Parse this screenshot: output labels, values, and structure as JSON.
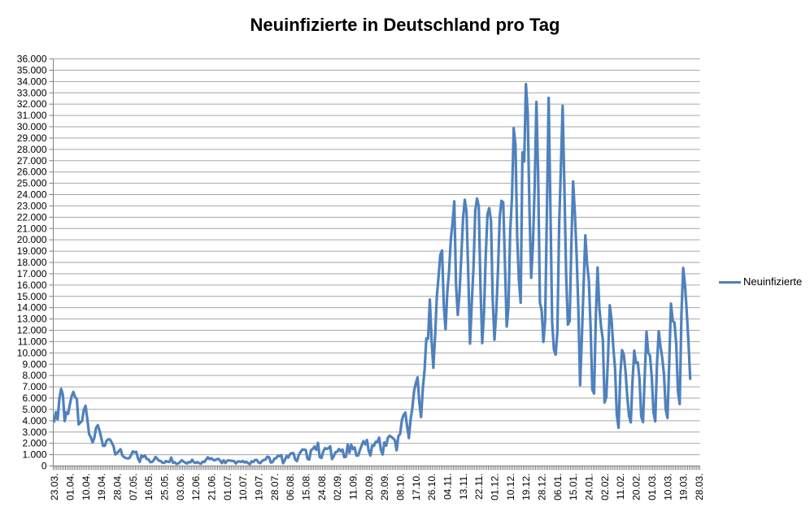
{
  "title": "Neuinfizierte in Deutschland pro Tag",
  "legend": {
    "label": "Neuinfizierte",
    "position": "right"
  },
  "colors": {
    "line": "#4F81BD",
    "gridline": "#A6A6A6",
    "axis": "#808080",
    "text": "#000000",
    "background": "#FFFFFF"
  },
  "chart_data": {
    "type": "line",
    "title": "Neuinfizierte in Deutschland pro Tag",
    "xlabel": "",
    "ylabel": "",
    "grid": true,
    "legend_position": "right",
    "ylim": [
      0,
      36000
    ],
    "y_tick_interval": 1000,
    "y_tick_format": "thousands-dot",
    "x_label_interval": 9,
    "x_minor_ticks": "daily",
    "x_tick_labels": [
      "23.03.",
      "01.04.",
      "10.04.",
      "19.04.",
      "28.04.",
      "07.05.",
      "16.05.",
      "25.05.",
      "03.06.",
      "12.06.",
      "21.06.",
      "01.07.",
      "10.07.",
      "19.07.",
      "28.07.",
      "06.08.",
      "15.08.",
      "24.08.",
      "02.09.",
      "11.09.",
      "20.09.",
      "29.09.",
      "08.10.",
      "17.10.",
      "26.10.",
      "04.11.",
      "13.11.",
      "22.11.",
      "01.12.",
      "10.12.",
      "19.12.",
      "28.12.",
      "06.01.",
      "15.01.",
      "24.01.",
      "02.02.",
      "11.02.",
      "20.02.",
      "01.03.",
      "10.03.",
      "19.03.",
      "28.03."
    ],
    "series": [
      {
        "name": "Neuinfizierte",
        "start_label": "23.03.",
        "values": [
          3930,
          4764,
          4118,
          5940,
          6824,
          6294,
          3965,
          4751,
          4615,
          5453,
          6156,
          6549,
          6082,
          5936,
          3677,
          3834,
          4003,
          4974,
          5323,
          4133,
          2821,
          2537,
          2082,
          2486,
          3380,
          3609,
          3118,
          2458,
          1775,
          1785,
          2237,
          2352,
          2337,
          2055,
          1737,
          1018,
          1144,
          1304,
          1478,
          945,
          793,
          697,
          679,
          685,
          947,
          1284,
          1209,
          1251,
          667,
          357,
          933,
          798,
          913,
          620,
          583,
          342,
          358,
          513,
          797,
          639,
          460,
          431,
          289,
          272,
          432,
          362,
          353,
          741,
          286,
          333,
          181,
          213,
          342,
          507,
          394,
          301,
          214,
          350,
          318,
          555,
          318,
          258,
          348,
          247,
          192,
          378,
          345,
          580,
          770,
          601,
          687,
          537,
          503,
          587,
          630,
          477,
          256,
          498,
          262,
          466,
          503,
          466,
          446,
          422,
          219,
          390,
          397,
          356,
          442,
          305,
          378,
          248,
          159,
          412,
          351,
          534,
          529,
          305,
          249,
          454,
          522,
          569,
          815,
          781,
          305,
          340,
          633,
          684,
          902,
          870,
          955,
          240,
          509,
          879,
          741,
          1045,
          1147,
          1122,
          555,
          436,
          966,
          1226,
          1445,
          1449,
          1415,
          625,
          561,
          1390,
          1510,
          1707,
          1427,
          2034,
          782,
          711,
          1278,
          1576,
          1507,
          1571,
          1737,
          610,
          852,
          1218,
          1256,
          1499,
          1311,
          1453,
          782,
          814,
          1898,
          1176,
          1892,
          1484,
          1630,
          920,
          927,
          1407,
          1821,
          2194,
          1916,
          2297,
          1345,
          922,
          1821,
          1769,
          2143,
          2126,
          2507,
          1411,
          1011,
          2089,
          1798,
          2503,
          2673,
          2563,
          2449,
          2279,
          1382,
          2639,
          2828,
          4058,
          4516,
          4721,
          3483,
          2467,
          4122,
          5132,
          6638,
          7334,
          7830,
          5587,
          4325,
          6868,
          8523,
          11287,
          11242,
          14714,
          11176,
          8685,
          11409,
          14964,
          16774,
          18681,
          19059,
          14177,
          12097,
          15352,
          17214,
          19990,
          21506,
          23399,
          16017,
          13363,
          15332,
          18487,
          21866,
          23542,
          22461,
          16947,
          10824,
          14419,
          17561,
          22609,
          23648,
          22964,
          15741,
          10864,
          13554,
          18633,
          22268,
          22806,
          21695,
          14611,
          11169,
          13604,
          17270,
          22046,
          23449,
          23318,
          17767,
          12332,
          14054,
          20815,
          23679,
          29875,
          28438,
          20200,
          16362,
          14432,
          27728,
          26923,
          33777,
          31300,
          22771,
          16643,
          19528,
          24740,
          32195,
          25533,
          14455,
          13755,
          10976,
          12892,
          22459,
          32552,
          22924,
          12690,
          10315,
          9847,
          11897,
          21237,
          26391,
          31849,
          24694,
          16946,
          12497,
          12802,
          19600,
          25164,
          22368,
          18678,
          13882,
          7141,
          11369,
          15974,
          20398,
          17862,
          16417,
          12257,
          6729,
          6412,
          13202,
          17553,
          14022,
          12321,
          11192,
          5608,
          6114,
          9705,
          14211,
          12908,
          10485,
          8616,
          4535,
          3379,
          8072,
          10237,
          9860,
          8354,
          6114,
          4426,
          3856,
          7556,
          10207,
          9113,
          9164,
          7676,
          4369,
          3883,
          8007,
          11869,
          9997,
          9762,
          7890,
          4732,
          3943,
          9019,
          11912,
          10580,
          9557,
          8103,
          5011,
          4252,
          9146,
          14356,
          12834,
          12674,
          10790,
          6604,
          5480,
          13435,
          17504,
          16033,
          13733,
          10982,
          7709
        ]
      }
    ]
  }
}
